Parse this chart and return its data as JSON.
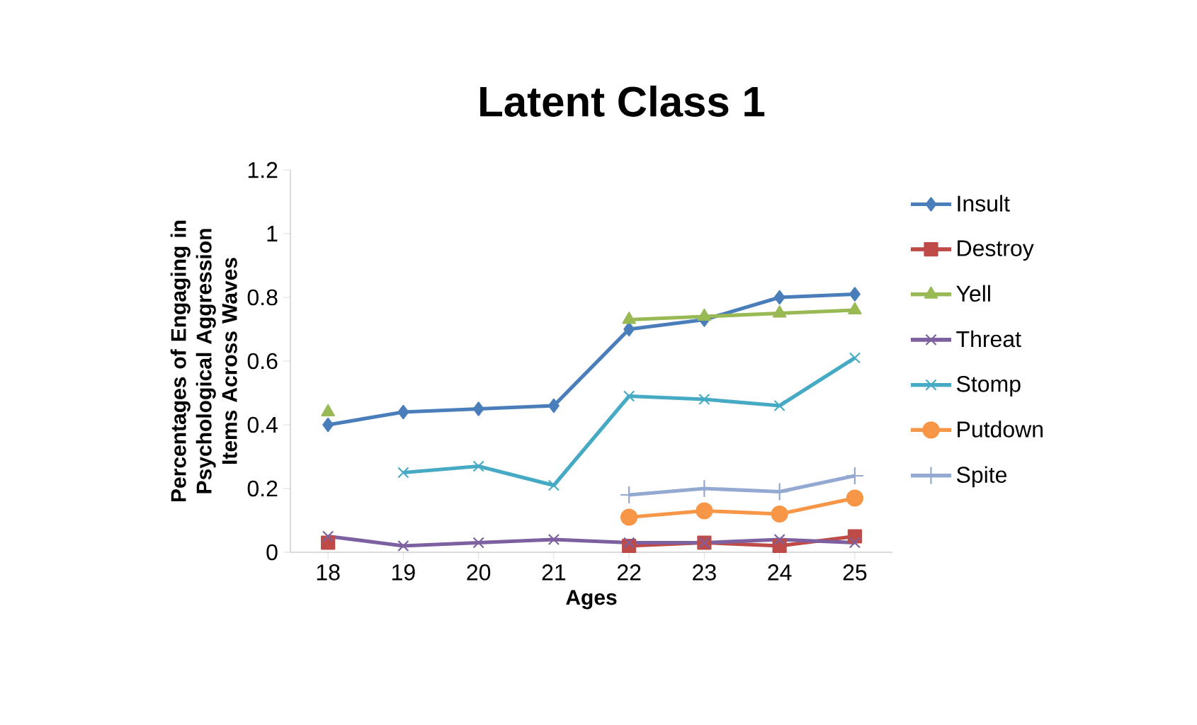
{
  "chart_data": {
    "type": "line",
    "title": "Latent Class 1",
    "xlabel": "Ages",
    "ylabel": "Percentages of Engaging in Psychological Aggression Items Across Waves",
    "categories": [
      "18",
      "19",
      "20",
      "21",
      "22",
      "23",
      "24",
      "25"
    ],
    "series": [
      {
        "name": "Insult",
        "color": "#4a7ebb",
        "marker": "diamond",
        "values": [
          0.4,
          0.44,
          0.45,
          0.46,
          0.7,
          0.73,
          0.8,
          0.81
        ]
      },
      {
        "name": "Destroy",
        "color": "#be4b48",
        "marker": "square",
        "values": [
          0.03,
          null,
          null,
          null,
          0.02,
          0.03,
          0.02,
          0.05
        ]
      },
      {
        "name": "Yell",
        "color": "#98b954",
        "marker": "triangle",
        "values": [
          0.44,
          null,
          null,
          null,
          0.73,
          0.74,
          0.75,
          0.76
        ]
      },
      {
        "name": "Threat",
        "color": "#7d60a0",
        "marker": "cross",
        "values": [
          0.05,
          0.02,
          0.03,
          0.04,
          0.03,
          0.03,
          0.04,
          0.03
        ]
      },
      {
        "name": "Stomp",
        "color": "#46aac5",
        "marker": "cross",
        "values": [
          null,
          0.25,
          0.27,
          0.21,
          0.49,
          0.48,
          0.46,
          0.61
        ]
      },
      {
        "name": "Putdown",
        "color": "#f79646",
        "marker": "circle",
        "values": [
          null,
          null,
          null,
          null,
          0.11,
          0.13,
          0.12,
          0.17
        ]
      },
      {
        "name": "Spite",
        "color": "#93a9d1",
        "marker": "plus",
        "values": [
          null,
          null,
          null,
          null,
          0.18,
          0.2,
          0.19,
          0.24
        ]
      }
    ],
    "ylim": [
      0,
      1.2
    ],
    "yticks": [
      0,
      0.2,
      0.4,
      0.6,
      0.8,
      1,
      1.2
    ],
    "grid": false,
    "legend": "right"
  }
}
